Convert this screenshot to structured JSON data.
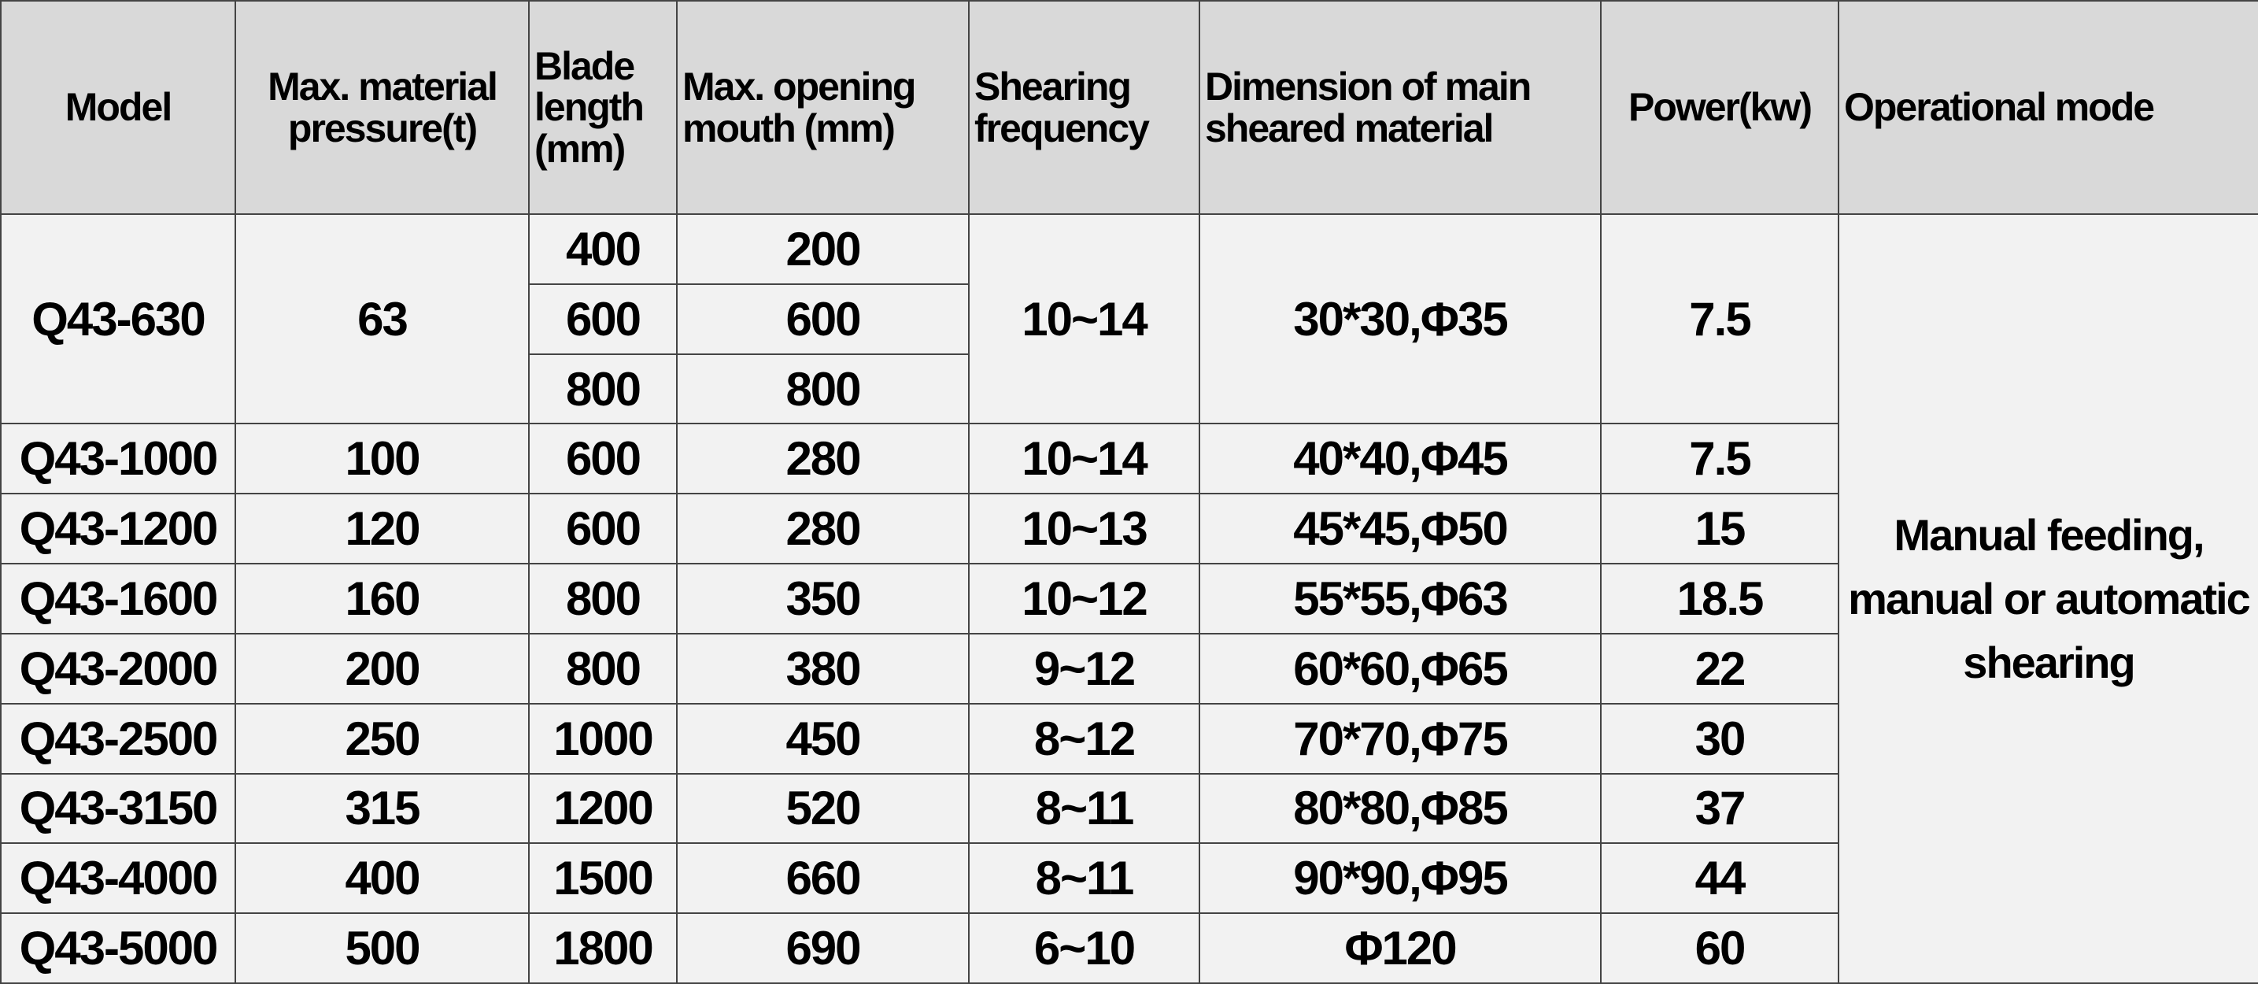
{
  "table": {
    "headers": [
      "Model",
      "Max. material pressure(t)",
      "Blade length (mm)",
      "Max. opening mouth (mm)",
      "Shearing frequency",
      "Dimension of main sheared material",
      "Power(kw)",
      "Operational mode"
    ],
    "rows": [
      {
        "model": "Q43-630",
        "pressure": "63",
        "blade": [
          "400",
          "600",
          "800"
        ],
        "opening": [
          "200",
          "600",
          "800"
        ],
        "frequency": "10~14",
        "dimension": "30*30,Φ35",
        "power": "7.5"
      },
      {
        "model": "Q43-1000",
        "pressure": "100",
        "blade": [
          "600"
        ],
        "opening": [
          "280"
        ],
        "frequency": "10~14",
        "dimension": "40*40,Φ45",
        "power": "7.5"
      },
      {
        "model": "Q43-1200",
        "pressure": "120",
        "blade": [
          "600"
        ],
        "opening": [
          "280"
        ],
        "frequency": "10~13",
        "dimension": "45*45,Φ50",
        "power": "15"
      },
      {
        "model": "Q43-1600",
        "pressure": "160",
        "blade": [
          "800"
        ],
        "opening": [
          "350"
        ],
        "frequency": "10~12",
        "dimension": "55*55,Φ63",
        "power": "18.5"
      },
      {
        "model": "Q43-2000",
        "pressure": "200",
        "blade": [
          "800"
        ],
        "opening": [
          "380"
        ],
        "frequency": "9~12",
        "dimension": "60*60,Φ65",
        "power": "22"
      },
      {
        "model": "Q43-2500",
        "pressure": "250",
        "blade": [
          "1000"
        ],
        "opening": [
          "450"
        ],
        "frequency": "8~12",
        "dimension": "70*70,Φ75",
        "power": "30"
      },
      {
        "model": "Q43-3150",
        "pressure": "315",
        "blade": [
          "1200"
        ],
        "opening": [
          "520"
        ],
        "frequency": "8~11",
        "dimension": "80*80,Φ85",
        "power": "37"
      },
      {
        "model": "Q43-4000",
        "pressure": "400",
        "blade": [
          "1500"
        ],
        "opening": [
          "660"
        ],
        "frequency": "8~11",
        "dimension": "90*90,Φ95",
        "power": "44"
      },
      {
        "model": "Q43-5000",
        "pressure": "500",
        "blade": [
          "1800"
        ],
        "opening": [
          "690"
        ],
        "frequency": "6~10",
        "dimension": "Φ120",
        "power": "60"
      }
    ],
    "operational_mode": "Manual feeding, manual or automatic shearing"
  }
}
